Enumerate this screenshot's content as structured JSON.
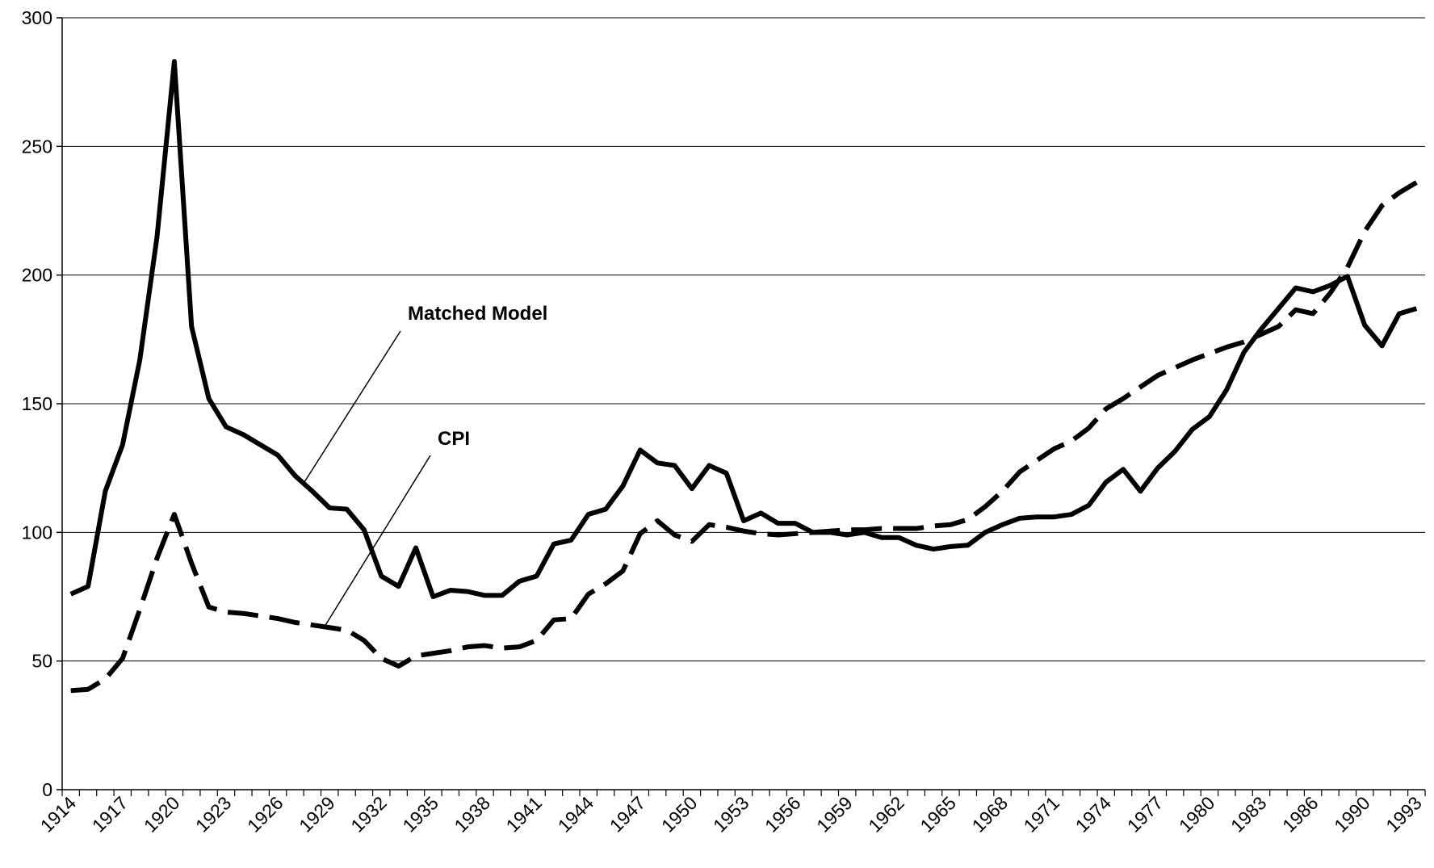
{
  "chart_data": {
    "type": "line",
    "categories": [
      "1914",
      null,
      null,
      "1917",
      null,
      null,
      "1920",
      null,
      null,
      "1923",
      null,
      null,
      "1926",
      null,
      null,
      "1929",
      null,
      null,
      "1932",
      null,
      null,
      "1935",
      null,
      null,
      "1938",
      null,
      null,
      "1941",
      null,
      null,
      "1944",
      null,
      null,
      "1947",
      null,
      null,
      "1950",
      null,
      null,
      "1953",
      null,
      null,
      "1956",
      null,
      null,
      "1959",
      null,
      null,
      "1962",
      null,
      null,
      "1965",
      null,
      null,
      "1968",
      null,
      null,
      "1971",
      null,
      null,
      "1974",
      null,
      null,
      "1977",
      null,
      null,
      "1980",
      null,
      null,
      "1983",
      null,
      null,
      "1986",
      null,
      null,
      "1990",
      null,
      null,
      "1993"
    ],
    "series": [
      {
        "name": "Matched Model",
        "color": "#000000",
        "dashed": false,
        "values": [
          76,
          79,
          116,
          134,
          167,
          215,
          283,
          180,
          152,
          141,
          138,
          134,
          130,
          122,
          116,
          109.5,
          109,
          101,
          83,
          79,
          94,
          75,
          77.5,
          77,
          75.5,
          75.5,
          81,
          83,
          95.5,
          97,
          107,
          109,
          118,
          132,
          127,
          126,
          117,
          126,
          123,
          104.5,
          107.5,
          103.5,
          103.5,
          100,
          100,
          99,
          100,
          98,
          98,
          95,
          93.5,
          94.5,
          95,
          100,
          103,
          105.5,
          106,
          106,
          107,
          110.5,
          119.5,
          124.5,
          116,
          125,
          131.5,
          140,
          145,
          155.5,
          170,
          179,
          187,
          195,
          193.5,
          196,
          199.5,
          180.5,
          172.5,
          185,
          187
        ]
      },
      {
        "name": "CPI",
        "color": "#000000",
        "dashed": true,
        "values": [
          38.5,
          39,
          43,
          51,
          70,
          90,
          107,
          88,
          71,
          69,
          68.5,
          67.5,
          66.5,
          65,
          64,
          63,
          62,
          58,
          51,
          48,
          52,
          53,
          54,
          55.5,
          56,
          55,
          55.5,
          58,
          66,
          66.5,
          76,
          80,
          85,
          99.5,
          104.5,
          99,
          96.5,
          103,
          102,
          100.5,
          99.5,
          99,
          99.5,
          100,
          100.5,
          101,
          101,
          101.5,
          101.5,
          101.5,
          102.5,
          103,
          105,
          110,
          116,
          123.5,
          128,
          132.5,
          135.5,
          140.5,
          148,
          152,
          156.5,
          161,
          164,
          167,
          169.5,
          172,
          174,
          177,
          180,
          186.5,
          185,
          193,
          203,
          217,
          227,
          232,
          236
        ]
      }
    ],
    "annotations": [
      "Matched Model",
      "CPI"
    ],
    "ylim": [
      0,
      300
    ],
    "yticks": [
      0,
      50,
      100,
      150,
      200,
      250,
      300
    ],
    "grid": true
  }
}
